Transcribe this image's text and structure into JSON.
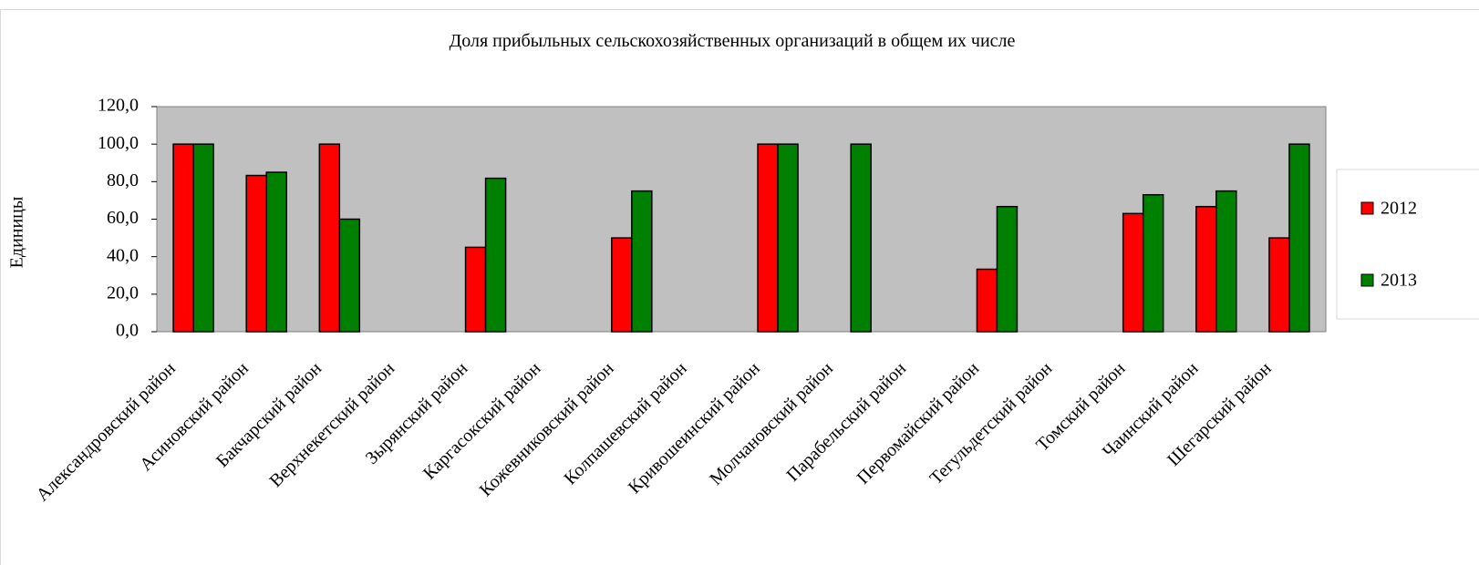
{
  "chart_data": {
    "type": "bar",
    "title": "Доля прибыльных сельскохозяйственных организаций в общем их числе",
    "ylabel": "Единицы",
    "categories": [
      "Александровский район",
      "Асиновский район",
      "Бакчарский район",
      "Верхнекетский район",
      "Зырянский район",
      "Каргасокский район",
      "Кожевниковский район",
      "Колпашевский район",
      "Кривошеинский район",
      "Молчановский район",
      "Парабельский район",
      "Первомайский район",
      "Тегульдетский район",
      "Томский район",
      "Чаинский район",
      "Шегарский район"
    ],
    "series": [
      {
        "name": "2012",
        "color": "#ff0000",
        "values": [
          100,
          83.3,
          100,
          null,
          45,
          null,
          50,
          null,
          100,
          null,
          null,
          33.3,
          null,
          63,
          66.7,
          50
        ]
      },
      {
        "name": "2013",
        "color": "#008000",
        "values": [
          100,
          85,
          60,
          null,
          81.8,
          null,
          75,
          null,
          100,
          100,
          null,
          66.7,
          null,
          73,
          75,
          100
        ]
      }
    ],
    "ylim": [
      0,
      120
    ],
    "yticks": [
      {
        "value": 0,
        "label": "0,0"
      },
      {
        "value": 20,
        "label": "20,0"
      },
      {
        "value": 40,
        "label": "40,0"
      },
      {
        "value": 60,
        "label": "60,0"
      },
      {
        "value": 80,
        "label": "80,0"
      },
      {
        "value": 100,
        "label": "100,0"
      },
      {
        "value": 120,
        "label": "120,0"
      }
    ],
    "grid": false,
    "legend": "right"
  }
}
